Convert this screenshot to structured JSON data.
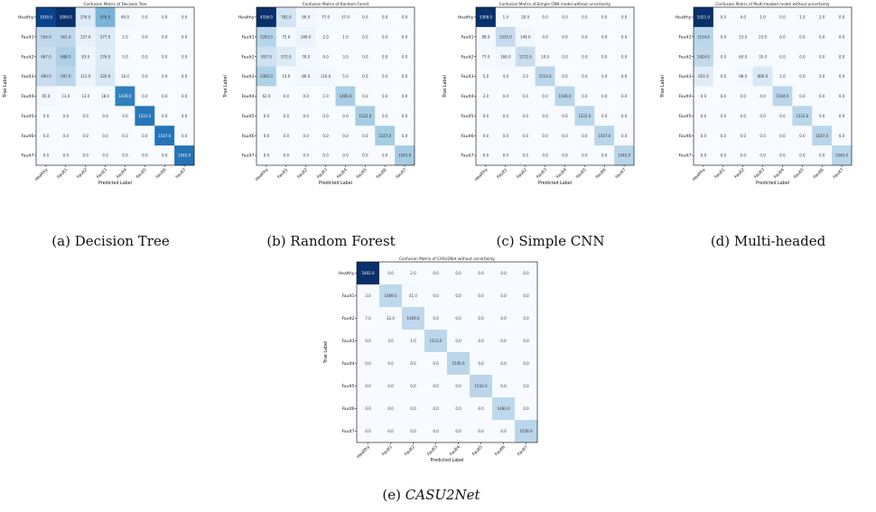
{
  "chart_data": [
    {
      "type": "heatmap",
      "title": "Confusion Matrix of Decision Tree",
      "xlabel": "Predicted Label",
      "ylabel": "True Label",
      "labels": [
        "Healthy",
        "Fault1",
        "Fault2",
        "Fault3",
        "Fault4",
        "Fault5",
        "Fault6",
        "Fault7"
      ],
      "colormap": "Blues",
      "values": [
        [
          1930.0,
          2090.0,
          276.0,
          976.0,
          49.0,
          0.0,
          0.0,
          0.0
        ],
        [
          554.0,
          561.0,
          157.0,
          277.0,
          1.0,
          0.0,
          0.0,
          0.0
        ],
        [
          467.0,
          688.0,
          83.0,
          276.0,
          5.0,
          0.0,
          0.0,
          0.0
        ],
        [
          490.0,
          597.0,
          113.0,
          320.0,
          16.0,
          0.0,
          0.0,
          0.0
        ],
        [
          65.0,
          13.0,
          13.0,
          18.0,
          1439.0,
          0.0,
          0.0,
          0.0
        ],
        [
          0.0,
          0.0,
          0.0,
          0.0,
          0.0,
          1522.0,
          0.0,
          0.0
        ],
        [
          0.0,
          0.0,
          0.0,
          0.0,
          0.0,
          0.0,
          1547.0,
          0.0
        ],
        [
          0.0,
          0.0,
          0.0,
          0.0,
          0.0,
          0.0,
          0.0,
          1545.0
        ]
      ]
    },
    {
      "type": "heatmap",
      "title": "Confusion Matrix of Random Forest",
      "xlabel": "Predicted Label",
      "ylabel": "True Label",
      "labels": [
        "Healthy",
        "Fault1",
        "Fault2",
        "Fault3",
        "Fault4",
        "Fault5",
        "Fault6",
        "Fault7"
      ],
      "colormap": "Blues",
      "values": [
        [
          4336.0,
          782.0,
          99.0,
          77.0,
          37.0,
          0.0,
          0.0,
          0.0
        ],
        [
          1283.0,
          75.0,
          269.0,
          2.0,
          1.0,
          0.0,
          0.0,
          0.0
        ],
        [
          857.0,
          572.0,
          78.0,
          9.0,
          3.0,
          0.0,
          0.0,
          0.0
        ],
        [
          1385.0,
          14.0,
          86.0,
          116.0,
          5.0,
          0.0,
          0.0,
          0.0
        ],
        [
          62.0,
          0.0,
          0.0,
          1.0,
          1485.0,
          0.0,
          0.0,
          0.0
        ],
        [
          0.0,
          0.0,
          0.0,
          0.0,
          0.0,
          1522.0,
          0.0,
          0.0
        ],
        [
          0.0,
          0.0,
          0.0,
          0.0,
          0.0,
          0.0,
          1547.0,
          0.0
        ],
        [
          0.0,
          0.0,
          0.0,
          0.0,
          0.0,
          0.0,
          0.0,
          1545.0
        ]
      ]
    },
    {
      "type": "heatmap",
      "title": "Confusion Matrix of Simple CNN model without uncertainty",
      "xlabel": "Predicted Label",
      "ylabel": "True Label",
      "labels": [
        "Healthy",
        "Fault1",
        "Fault2",
        "Fault3",
        "Fault4",
        "Fault5",
        "Fault6",
        "Fault7"
      ],
      "colormap": "Blues",
      "values": [
        [
          5308.0,
          1.0,
          20.0,
          0.0,
          0.0,
          0.0,
          0.0,
          0.0
        ],
        [
          98.0,
          1335.0,
          149.0,
          0.0,
          0.0,
          0.0,
          0.0,
          0.0
        ],
        [
          77.0,
          168.0,
          1272.0,
          10.0,
          0.0,
          0.0,
          0.0,
          0.0
        ],
        [
          5.0,
          4.0,
          3.0,
          1514.0,
          0.0,
          0.0,
          0.0,
          0.0
        ],
        [
          2.0,
          0.0,
          0.0,
          0.0,
          1546.0,
          0.0,
          0.0,
          0.0
        ],
        [
          0.0,
          0.0,
          0.0,
          0.0,
          0.0,
          1522.0,
          0.0,
          0.0
        ],
        [
          0.0,
          0.0,
          0.0,
          0.0,
          0.0,
          0.0,
          1547.0,
          0.0
        ],
        [
          0.0,
          0.0,
          0.0,
          0.0,
          0.0,
          0.0,
          0.0,
          1545.0
        ]
      ]
    },
    {
      "type": "heatmap",
      "title": "Confusion Matrix of Multi-headed model without uncertainty",
      "xlabel": "Predicted Label",
      "ylabel": "True Label",
      "labels": [
        "Healthy",
        "Fault1",
        "Fault2",
        "Fault3",
        "Fault4",
        "Fault5",
        "Fault6",
        "Fault7"
      ],
      "colormap": "Blues",
      "values": [
        [
          5321.0,
          0.0,
          4.0,
          1.0,
          0.0,
          1.0,
          2.0,
          0.0
        ],
        [
          1534.0,
          0.0,
          23.0,
          23.0,
          0.0,
          0.0,
          0.0,
          0.0
        ],
        [
          1424.0,
          0.0,
          60.0,
          35.0,
          0.0,
          0.0,
          0.0,
          0.0
        ],
        [
          621.0,
          0.0,
          98.0,
          806.0,
          1.0,
          0.0,
          0.0,
          0.0
        ],
        [
          0.0,
          0.0,
          0.0,
          4.0,
          1544.0,
          0.0,
          0.0,
          0.0
        ],
        [
          0.0,
          0.0,
          0.0,
          0.0,
          0.0,
          1522.0,
          0.0,
          0.0
        ],
        [
          0.0,
          0.0,
          0.0,
          0.0,
          0.0,
          0.0,
          1547.0,
          0.0
        ],
        [
          0.0,
          0.0,
          0.0,
          0.0,
          0.0,
          0.0,
          0.0,
          1545.0
        ]
      ]
    },
    {
      "type": "heatmap",
      "title": "Confusion Matrix of CASU2Net without uncertainty",
      "xlabel": "Predicted Label",
      "ylabel": "True Label",
      "labels": [
        "Healthy",
        "Fault1",
        "Fault2",
        "Fault3",
        "Fault4",
        "Fault5",
        "Fault6",
        "Fault7"
      ],
      "colormap": "Blues",
      "values": [
        [
          5402.0,
          0.0,
          2.0,
          0.0,
          0.0,
          0.0,
          0.0,
          0.0
        ],
        [
          3.0,
          1489.0,
          41.0,
          0.0,
          0.0,
          0.0,
          0.0,
          0.0
        ],
        [
          7.0,
          32.0,
          1469.0,
          0.0,
          0.0,
          0.0,
          0.0,
          0.0
        ],
        [
          0.0,
          3.0,
          1.0,
          1513.0,
          0.0,
          0.0,
          0.0,
          0.0
        ],
        [
          0.0,
          0.0,
          0.0,
          0.0,
          1545.0,
          0.0,
          0.0,
          0.0
        ],
        [
          0.0,
          0.0,
          0.0,
          0.0,
          0.0,
          1543.0,
          0.0,
          0.0
        ],
        [
          0.0,
          0.0,
          0.0,
          0.0,
          0.0,
          0.0,
          1483.0,
          0.0
        ],
        [
          0.0,
          0.0,
          0.0,
          0.0,
          0.0,
          0.0,
          0.0,
          1556.0
        ]
      ]
    }
  ],
  "captions": [
    {
      "tag": "(a)",
      "text": "Decision Tree"
    },
    {
      "tag": "(b)",
      "text": "Random Forest"
    },
    {
      "tag": "(c)",
      "text": "Simple CNN"
    },
    {
      "tag": "(d)",
      "text": "Multi-headed"
    },
    {
      "tag": "(e)",
      "text": "CASU2Net"
    }
  ]
}
